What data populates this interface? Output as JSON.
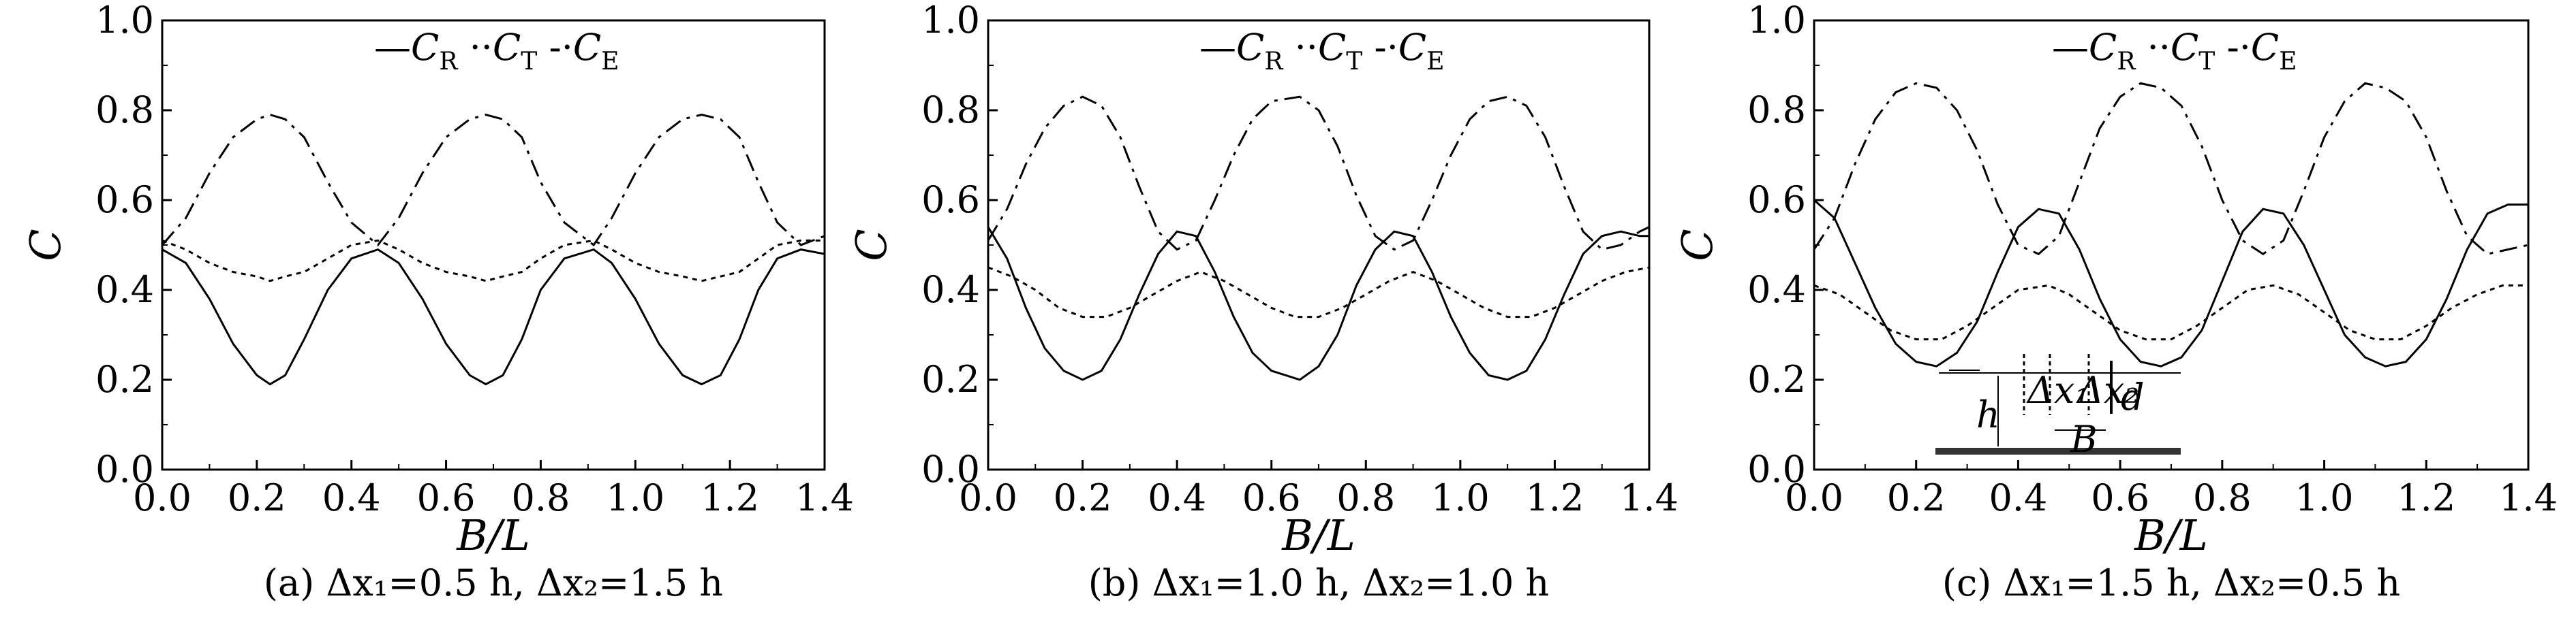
{
  "chart_data": [
    {
      "type": "line",
      "title": "",
      "xlabel": "B/L",
      "ylabel": "C",
      "xlim": [
        0.0,
        1.4
      ],
      "ylim": [
        0.0,
        1.0
      ],
      "xticks": [
        "0.0",
        "0.2",
        "0.4",
        "0.6",
        "0.8",
        "1.0",
        "1.2",
        "1.4"
      ],
      "yticks": [
        "0.0",
        "0.2",
        "0.4",
        "0.6",
        "0.8",
        "1.0"
      ],
      "grid": false,
      "legend": [
        "C_R",
        "C_T",
        "C_E"
      ],
      "legend_placement": "top-center",
      "caption": {
        "tag": "(a)",
        "text": "Δx₁=0.5 h,  Δx₂=1.5 h"
      },
      "series": [
        {
          "name": "C_R",
          "style": "solid",
          "x": [
            0.0,
            0.05,
            0.1,
            0.15,
            0.2,
            0.228,
            0.26,
            0.3,
            0.35,
            0.4,
            0.456,
            0.5,
            0.55,
            0.6,
            0.65,
            0.684,
            0.72,
            0.76,
            0.8,
            0.85,
            0.912,
            0.95,
            1.0,
            1.05,
            1.1,
            1.14,
            1.18,
            1.22,
            1.26,
            1.3,
            1.35,
            1.4
          ],
          "y": [
            0.49,
            0.46,
            0.38,
            0.28,
            0.21,
            0.19,
            0.21,
            0.29,
            0.4,
            0.47,
            0.49,
            0.46,
            0.38,
            0.28,
            0.21,
            0.19,
            0.21,
            0.29,
            0.4,
            0.47,
            0.49,
            0.46,
            0.38,
            0.28,
            0.21,
            0.19,
            0.21,
            0.29,
            0.4,
            0.47,
            0.49,
            0.48
          ]
        },
        {
          "name": "C_T",
          "style": "dotted",
          "x": [
            0.0,
            0.05,
            0.1,
            0.15,
            0.2,
            0.228,
            0.26,
            0.3,
            0.35,
            0.4,
            0.456,
            0.5,
            0.55,
            0.6,
            0.65,
            0.684,
            0.72,
            0.76,
            0.8,
            0.85,
            0.912,
            0.95,
            1.0,
            1.05,
            1.1,
            1.14,
            1.18,
            1.22,
            1.26,
            1.3,
            1.35,
            1.4
          ],
          "y": [
            0.51,
            0.49,
            0.46,
            0.44,
            0.43,
            0.42,
            0.43,
            0.44,
            0.47,
            0.5,
            0.51,
            0.49,
            0.46,
            0.44,
            0.43,
            0.42,
            0.43,
            0.44,
            0.47,
            0.5,
            0.51,
            0.49,
            0.46,
            0.44,
            0.43,
            0.42,
            0.43,
            0.44,
            0.47,
            0.5,
            0.51,
            0.51
          ]
        },
        {
          "name": "C_E",
          "style": "dashdot",
          "x": [
            0.0,
            0.05,
            0.1,
            0.15,
            0.2,
            0.228,
            0.26,
            0.3,
            0.35,
            0.4,
            0.456,
            0.5,
            0.55,
            0.6,
            0.65,
            0.684,
            0.72,
            0.76,
            0.8,
            0.85,
            0.912,
            0.95,
            1.0,
            1.05,
            1.1,
            1.14,
            1.18,
            1.22,
            1.26,
            1.3,
            1.35,
            1.4
          ],
          "y": [
            0.5,
            0.56,
            0.66,
            0.74,
            0.78,
            0.79,
            0.78,
            0.74,
            0.64,
            0.55,
            0.5,
            0.56,
            0.66,
            0.74,
            0.78,
            0.79,
            0.78,
            0.74,
            0.64,
            0.55,
            0.5,
            0.56,
            0.66,
            0.74,
            0.78,
            0.79,
            0.78,
            0.74,
            0.64,
            0.55,
            0.5,
            0.52
          ]
        }
      ]
    },
    {
      "type": "line",
      "title": "",
      "xlabel": "B/L",
      "ylabel": "C",
      "xlim": [
        0.0,
        1.4
      ],
      "ylim": [
        0.0,
        1.0
      ],
      "xticks": [
        "0.0",
        "0.2",
        "0.4",
        "0.6",
        "0.8",
        "1.0",
        "1.2",
        "1.4"
      ],
      "yticks": [
        "0.0",
        "0.2",
        "0.4",
        "0.6",
        "0.8",
        "1.0"
      ],
      "grid": false,
      "legend": [
        "C_R",
        "C_T",
        "C_E"
      ],
      "legend_placement": "top-center",
      "caption": {
        "tag": "(b)",
        "text": "Δx₁=1.0 h,  Δx₂=1.0 h"
      },
      "series": [
        {
          "name": "C_R",
          "style": "solid",
          "x": [
            0.0,
            0.04,
            0.08,
            0.12,
            0.16,
            0.2,
            0.24,
            0.28,
            0.32,
            0.36,
            0.4,
            0.44,
            0.48,
            0.52,
            0.56,
            0.6,
            0.66,
            0.7,
            0.74,
            0.78,
            0.82,
            0.86,
            0.9,
            0.94,
            0.98,
            1.02,
            1.06,
            1.1,
            1.14,
            1.18,
            1.22,
            1.26,
            1.3,
            1.34,
            1.38,
            1.4
          ],
          "y": [
            0.54,
            0.47,
            0.36,
            0.27,
            0.22,
            0.2,
            0.22,
            0.29,
            0.39,
            0.48,
            0.53,
            0.52,
            0.44,
            0.34,
            0.26,
            0.22,
            0.2,
            0.23,
            0.3,
            0.41,
            0.49,
            0.53,
            0.52,
            0.44,
            0.34,
            0.26,
            0.21,
            0.2,
            0.22,
            0.29,
            0.39,
            0.48,
            0.52,
            0.53,
            0.52,
            0.52
          ]
        },
        {
          "name": "C_T",
          "style": "dotted",
          "x": [
            0.0,
            0.05,
            0.1,
            0.15,
            0.2,
            0.25,
            0.3,
            0.35,
            0.4,
            0.45,
            0.5,
            0.55,
            0.6,
            0.65,
            0.7,
            0.75,
            0.8,
            0.85,
            0.9,
            0.95,
            1.0,
            1.05,
            1.1,
            1.15,
            1.2,
            1.25,
            1.3,
            1.35,
            1.4
          ],
          "y": [
            0.45,
            0.43,
            0.4,
            0.36,
            0.34,
            0.34,
            0.36,
            0.39,
            0.42,
            0.44,
            0.42,
            0.39,
            0.36,
            0.34,
            0.34,
            0.36,
            0.39,
            0.42,
            0.44,
            0.42,
            0.39,
            0.36,
            0.34,
            0.34,
            0.36,
            0.39,
            0.42,
            0.44,
            0.45
          ]
        },
        {
          "name": "C_E",
          "style": "dashdot",
          "x": [
            0.0,
            0.04,
            0.08,
            0.12,
            0.16,
            0.2,
            0.24,
            0.28,
            0.32,
            0.36,
            0.4,
            0.44,
            0.48,
            0.52,
            0.56,
            0.6,
            0.66,
            0.7,
            0.74,
            0.78,
            0.82,
            0.86,
            0.9,
            0.94,
            0.98,
            1.02,
            1.06,
            1.1,
            1.14,
            1.18,
            1.22,
            1.26,
            1.3,
            1.34,
            1.38,
            1.4
          ],
          "y": [
            0.51,
            0.58,
            0.68,
            0.76,
            0.81,
            0.83,
            0.81,
            0.74,
            0.63,
            0.53,
            0.49,
            0.51,
            0.6,
            0.7,
            0.78,
            0.82,
            0.83,
            0.8,
            0.72,
            0.61,
            0.52,
            0.49,
            0.51,
            0.6,
            0.7,
            0.78,
            0.82,
            0.83,
            0.81,
            0.74,
            0.63,
            0.53,
            0.49,
            0.5,
            0.53,
            0.54
          ]
        }
      ]
    },
    {
      "type": "line",
      "title": "",
      "xlabel": "B/L",
      "ylabel": "C",
      "xlim": [
        0.0,
        1.4
      ],
      "ylim": [
        0.0,
        1.0
      ],
      "xticks": [
        "0.0",
        "0.2",
        "0.4",
        "0.6",
        "0.8",
        "1.0",
        "1.2",
        "1.4"
      ],
      "yticks": [
        "0.0",
        "0.2",
        "0.4",
        "0.6",
        "0.8",
        "1.0"
      ],
      "grid": false,
      "legend": [
        "C_R",
        "C_T",
        "C_E"
      ],
      "legend_placement": "top-center",
      "caption": {
        "tag": "(c)",
        "text": "Δx₁=1.5 h,  Δx₂=0.5 h"
      },
      "inset_labels": [
        "Δx₁",
        "Δx₂",
        "d",
        "h",
        "B"
      ],
      "series": [
        {
          "name": "C_R",
          "style": "solid",
          "x": [
            0.0,
            0.04,
            0.08,
            0.12,
            0.16,
            0.2,
            0.24,
            0.28,
            0.32,
            0.36,
            0.4,
            0.44,
            0.48,
            0.52,
            0.56,
            0.6,
            0.64,
            0.68,
            0.72,
            0.76,
            0.8,
            0.84,
            0.88,
            0.92,
            0.96,
            1.0,
            1.04,
            1.08,
            1.12,
            1.16,
            1.2,
            1.24,
            1.28,
            1.32,
            1.36,
            1.4
          ],
          "y": [
            0.6,
            0.56,
            0.46,
            0.36,
            0.28,
            0.24,
            0.23,
            0.26,
            0.33,
            0.44,
            0.54,
            0.58,
            0.57,
            0.49,
            0.38,
            0.29,
            0.24,
            0.23,
            0.25,
            0.31,
            0.42,
            0.53,
            0.58,
            0.57,
            0.5,
            0.4,
            0.3,
            0.25,
            0.23,
            0.24,
            0.29,
            0.38,
            0.49,
            0.57,
            0.59,
            0.59
          ]
        },
        {
          "name": "C_T",
          "style": "dotted",
          "x": [
            0.0,
            0.05,
            0.1,
            0.15,
            0.2,
            0.25,
            0.3,
            0.35,
            0.4,
            0.46,
            0.5,
            0.55,
            0.6,
            0.65,
            0.7,
            0.75,
            0.8,
            0.85,
            0.9,
            0.95,
            1.0,
            1.05,
            1.1,
            1.15,
            1.2,
            1.25,
            1.3,
            1.35,
            1.4
          ],
          "y": [
            0.41,
            0.39,
            0.35,
            0.31,
            0.29,
            0.29,
            0.32,
            0.36,
            0.4,
            0.41,
            0.39,
            0.35,
            0.31,
            0.29,
            0.29,
            0.32,
            0.36,
            0.4,
            0.41,
            0.39,
            0.35,
            0.31,
            0.29,
            0.29,
            0.32,
            0.36,
            0.39,
            0.41,
            0.41
          ]
        },
        {
          "name": "C_E",
          "style": "dashdot",
          "x": [
            0.0,
            0.04,
            0.08,
            0.12,
            0.16,
            0.2,
            0.24,
            0.28,
            0.32,
            0.36,
            0.4,
            0.44,
            0.48,
            0.52,
            0.56,
            0.6,
            0.64,
            0.68,
            0.72,
            0.76,
            0.8,
            0.84,
            0.88,
            0.92,
            0.96,
            1.0,
            1.04,
            1.08,
            1.12,
            1.16,
            1.2,
            1.24,
            1.28,
            1.32,
            1.36,
            1.4
          ],
          "y": [
            0.49,
            0.56,
            0.68,
            0.78,
            0.84,
            0.86,
            0.85,
            0.8,
            0.71,
            0.59,
            0.5,
            0.48,
            0.52,
            0.64,
            0.76,
            0.83,
            0.86,
            0.85,
            0.81,
            0.72,
            0.6,
            0.51,
            0.48,
            0.51,
            0.62,
            0.74,
            0.82,
            0.86,
            0.85,
            0.82,
            0.74,
            0.62,
            0.52,
            0.48,
            0.49,
            0.5
          ]
        }
      ]
    }
  ]
}
